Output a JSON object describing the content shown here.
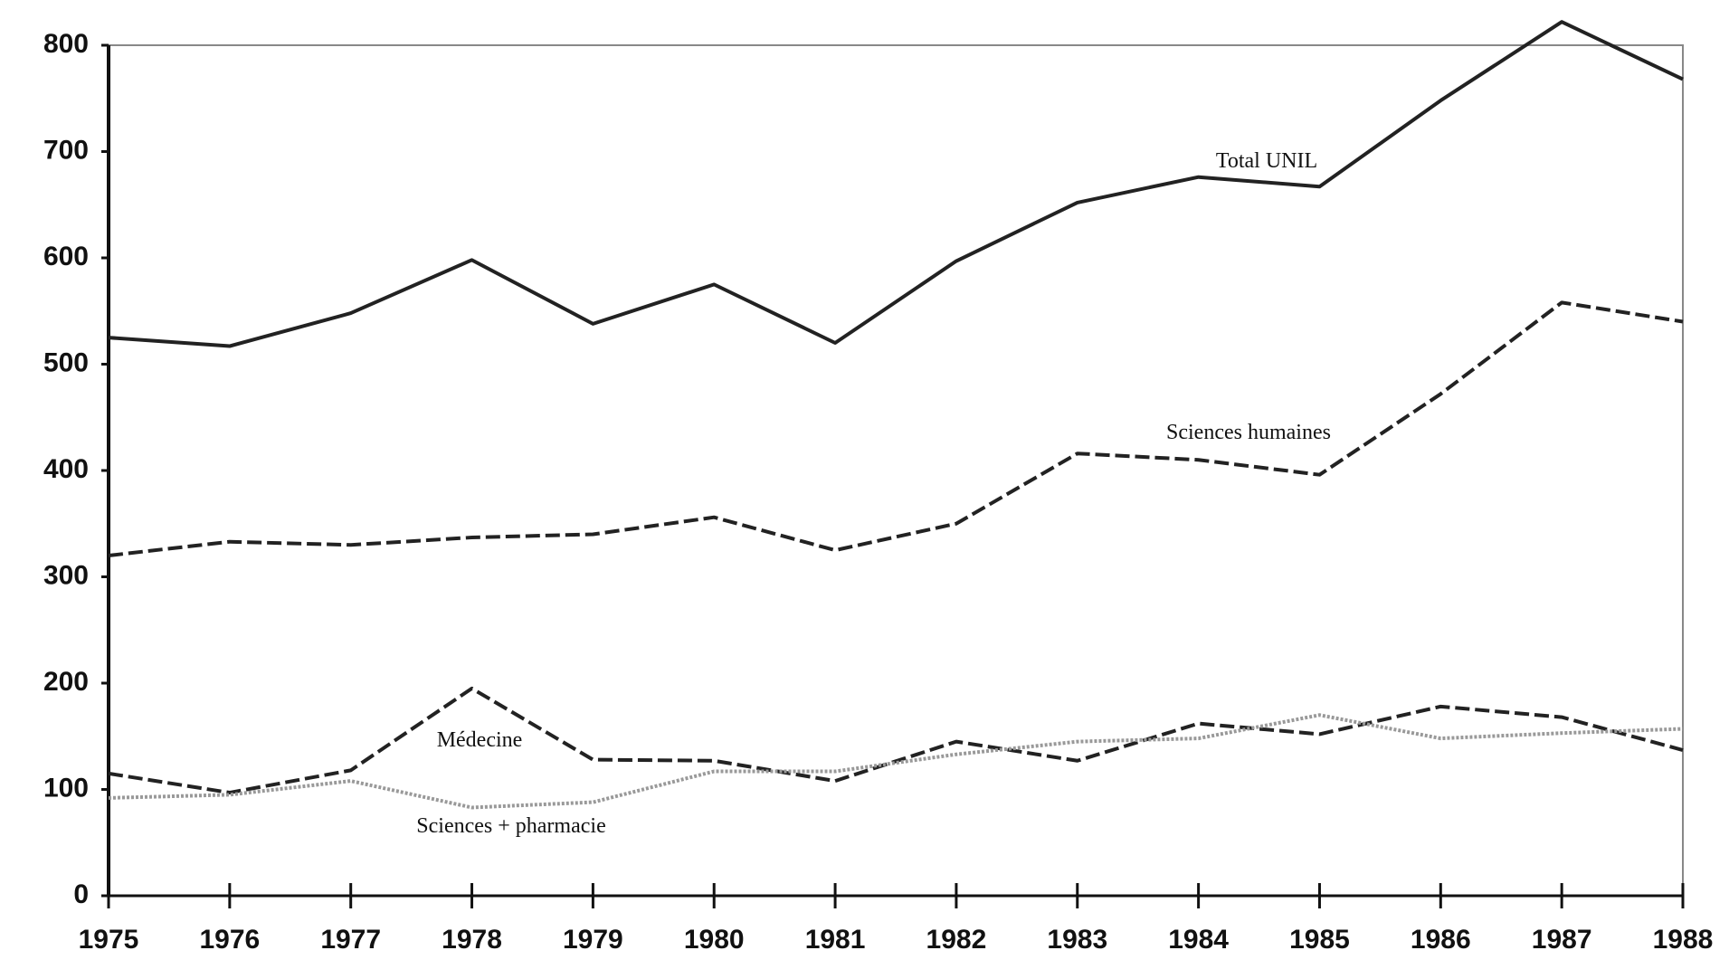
{
  "chart_data": {
    "type": "line",
    "categories": [
      "1975",
      "1976",
      "1977",
      "1978",
      "1979",
      "1980",
      "1981",
      "1982",
      "1983",
      "1984",
      "1985",
      "1986",
      "1987",
      "1988"
    ],
    "series": [
      {
        "name": "Total UNIL",
        "color": "#222222",
        "style": "solid",
        "values": [
          525,
          517,
          548,
          598,
          538,
          575,
          520,
          597,
          652,
          676,
          667,
          748,
          822,
          768
        ]
      },
      {
        "name": "Sciences humaines",
        "color": "#222222",
        "style": "dashed",
        "values": [
          320,
          333,
          330,
          337,
          340,
          356,
          325,
          350,
          416,
          410,
          396,
          472,
          558,
          540
        ]
      },
      {
        "name": "Médecine",
        "color": "#222222",
        "style": "dashed",
        "values": [
          115,
          97,
          118,
          195,
          128,
          127,
          108,
          145,
          127,
          162,
          152,
          178,
          168,
          137
        ]
      },
      {
        "name": "Sciences + pharmacie",
        "color": "#999999",
        "style": "dotted",
        "values": [
          92,
          95,
          108,
          83,
          88,
          117,
          117,
          133,
          145,
          148,
          170,
          148,
          153,
          157
        ]
      }
    ],
    "ylim": [
      0,
      800
    ],
    "yticks": [
      0,
      100,
      200,
      300,
      400,
      500,
      600,
      700,
      800
    ]
  }
}
